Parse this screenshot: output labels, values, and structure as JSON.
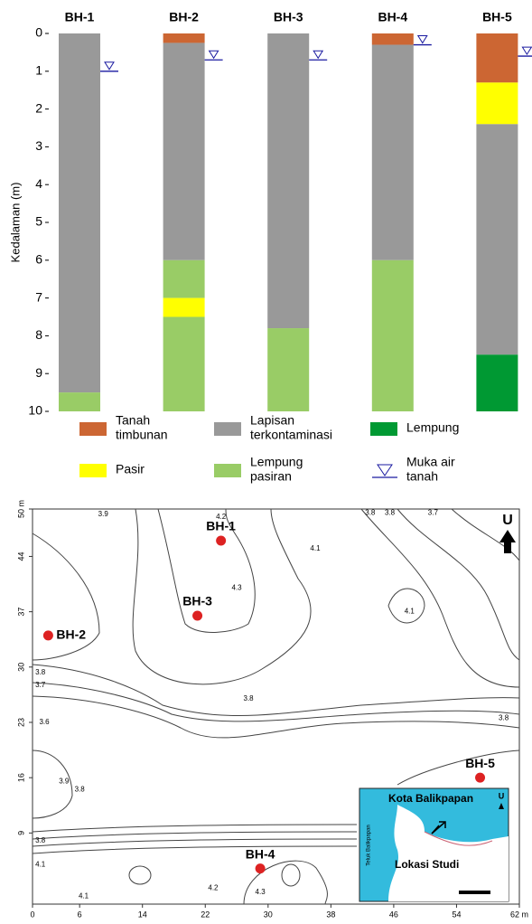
{
  "chart_data": [
    {
      "type": "borehole",
      "ylabel": "Kedalaman (m)",
      "ylim": [
        0,
        10
      ],
      "yticks": [
        0,
        1,
        2,
        3,
        4,
        5,
        6,
        7,
        8,
        9,
        10
      ],
      "legend": [
        {
          "lines": [
            "Tanah",
            "timbunan"
          ],
          "color": "#cc6633"
        },
        {
          "lines": [
            "Lapisan",
            "terkontaminasi"
          ],
          "color": "#999999"
        },
        {
          "lines": [
            "Lempung"
          ],
          "color": "#009933"
        },
        {
          "lines": [
            "Pasir"
          ],
          "color": "#ffff00"
        },
        {
          "lines": [
            "Lempung",
            "pasiran"
          ],
          "color": "#99cc66"
        }
      ],
      "water_legend": [
        "Muka air",
        "tanah"
      ],
      "water_color": "#1a1aa0",
      "columns": [
        {
          "name": "BH-1",
          "water": 1.0,
          "segments": [
            {
              "layer": 1,
              "thickness": 9.5
            },
            {
              "layer": 4,
              "thickness": 0.5
            }
          ]
        },
        {
          "name": "BH-2",
          "water": 0.7,
          "segments": [
            {
              "layer": 0,
              "thickness": 0.25
            },
            {
              "layer": 1,
              "thickness": 5.75
            },
            {
              "layer": 4,
              "thickness": 1
            },
            {
              "layer": 3,
              "thickness": 0.5
            },
            {
              "layer": 4,
              "thickness": 2.5
            }
          ]
        },
        {
          "name": "BH-3",
          "water": 0.7,
          "segments": [
            {
              "layer": 1,
              "thickness": 7.8
            },
            {
              "layer": 4,
              "thickness": 2.2
            }
          ]
        },
        {
          "name": "BH-4",
          "water": 0.3,
          "segments": [
            {
              "layer": 0,
              "thickness": 0.3
            },
            {
              "layer": 1,
              "thickness": 5.7
            },
            {
              "layer": 4,
              "thickness": 4
            }
          ]
        },
        {
          "name": "BH-5",
          "water": 0.6,
          "segments": [
            {
              "layer": 0,
              "thickness": 1.3
            },
            {
              "layer": 3,
              "thickness": 1.1
            },
            {
              "layer": 1,
              "thickness": 6.1
            },
            {
              "layer": 2,
              "thickness": 1.5
            }
          ]
        }
      ]
    },
    {
      "type": "map",
      "xlim": [
        0,
        62
      ],
      "xticks": [
        0,
        6,
        14,
        22,
        30,
        38,
        46,
        54,
        {
          "value": 62,
          "label": "62 m"
        }
      ],
      "ylim": [
        0,
        50
      ],
      "yticks": [
        9,
        16,
        23,
        30,
        37,
        {
          "value": 44,
          "label": "44"
        },
        {
          "value": 50,
          "label": "50 m"
        }
      ],
      "point_color": "#dd2222",
      "points": [
        {
          "name": "BH-1",
          "x": 24,
          "y": 46
        },
        {
          "name": "BH-2",
          "x": 2,
          "y": 34
        },
        {
          "name": "BH-3",
          "x": 21,
          "y": 36.5
        },
        {
          "name": "BH-4",
          "x": 29,
          "y": 4.5
        },
        {
          "name": "BH-5",
          "x": 57,
          "y": 16
        }
      ],
      "contour_labels": [
        {
          "x": 1,
          "y": 29.3,
          "value": 3.8
        },
        {
          "x": 1,
          "y": 27.7,
          "value": 3.7
        },
        {
          "x": 1.5,
          "y": 23,
          "value": 3.6
        },
        {
          "x": 27.5,
          "y": 26,
          "value": 3.8
        },
        {
          "x": 43,
          "y": 49.5,
          "value": 3.8
        },
        {
          "x": 45.5,
          "y": 49.5,
          "value": 3.8
        },
        {
          "x": 51,
          "y": 49.5,
          "value": 3.7
        },
        {
          "x": 9,
          "y": 49.3,
          "value": 3.9
        },
        {
          "x": 36,
          "y": 45,
          "value": 4.1
        },
        {
          "x": 24,
          "y": 49,
          "value": 4.2
        },
        {
          "x": 26,
          "y": 40,
          "value": 4.3
        },
        {
          "x": 48,
          "y": 37,
          "value": 4.1
        },
        {
          "x": 60,
          "y": 23.5,
          "value": 3.8
        },
        {
          "x": 4,
          "y": 15.5,
          "value": 3.9
        },
        {
          "x": 6,
          "y": 14.5,
          "value": 3.8
        },
        {
          "x": 1,
          "y": 8,
          "value": 3.8
        },
        {
          "x": 1,
          "y": 5,
          "value": 4.1
        },
        {
          "x": 23,
          "y": 2,
          "value": 4.2
        },
        {
          "x": 29,
          "y": 1.5,
          "value": 4.3
        },
        {
          "x": 6.5,
          "y": 1,
          "value": 4.1
        }
      ],
      "north": "U",
      "inset": {
        "city": "Kota Balikpapan",
        "site": "Lokasi Studi",
        "bay": "Teluk Balikpapan",
        "north": "U"
      }
    }
  ]
}
